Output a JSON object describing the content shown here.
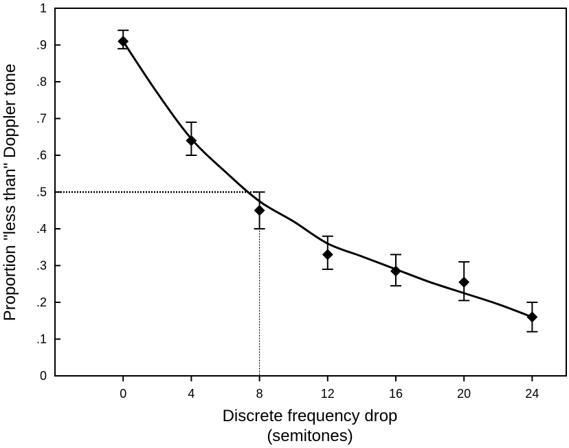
{
  "chart_data": {
    "type": "scatter",
    "title": "",
    "xlabel_line1": "Discrete frequency drop",
    "xlabel_line2": "(semitones)",
    "ylabel": "Proportion \"less than\" Doppler tone",
    "xlim": [
      -4,
      26
    ],
    "ylim": [
      0,
      1
    ],
    "x_ticks": [
      {
        "value": 0,
        "label": "0"
      },
      {
        "value": 4,
        "label": "4"
      },
      {
        "value": 8,
        "label": "8"
      },
      {
        "value": 12,
        "label": "12"
      },
      {
        "value": 16,
        "label": "16"
      },
      {
        "value": 20,
        "label": "20"
      },
      {
        "value": 24,
        "label": "24"
      }
    ],
    "y_ticks": [
      {
        "value": 0,
        "label": "0"
      },
      {
        "value": 0.1,
        "label": ".1"
      },
      {
        "value": 0.2,
        "label": ".2"
      },
      {
        "value": 0.3,
        "label": ".3"
      },
      {
        "value": 0.4,
        "label": ".4"
      },
      {
        "value": 0.5,
        "label": ".5"
      },
      {
        "value": 0.6,
        "label": ".6"
      },
      {
        "value": 0.7,
        "label": ".7"
      },
      {
        "value": 0.8,
        "label": ".8"
      },
      {
        "value": 0.9,
        "label": ".9"
      },
      {
        "value": 1,
        "label": "1"
      }
    ],
    "points": [
      {
        "x": 0,
        "y": 0.91,
        "err_low": 0.89,
        "err_high": 0.94
      },
      {
        "x": 4,
        "y": 0.64,
        "err_low": 0.6,
        "err_high": 0.69
      },
      {
        "x": 8,
        "y": 0.45,
        "err_low": 0.4,
        "err_high": 0.5
      },
      {
        "x": 12,
        "y": 0.33,
        "err_low": 0.29,
        "err_high": 0.38
      },
      {
        "x": 16,
        "y": 0.285,
        "err_low": 0.245,
        "err_high": 0.33
      },
      {
        "x": 20,
        "y": 0.255,
        "err_low": 0.205,
        "err_high": 0.31
      },
      {
        "x": 24,
        "y": 0.16,
        "err_low": 0.12,
        "err_high": 0.2
      }
    ],
    "fit_curve": [
      {
        "x": 0,
        "y": 0.91
      },
      {
        "x": 2,
        "y": 0.77
      },
      {
        "x": 4,
        "y": 0.645
      },
      {
        "x": 6,
        "y": 0.555
      },
      {
        "x": 8,
        "y": 0.475
      },
      {
        "x": 10,
        "y": 0.42
      },
      {
        "x": 12,
        "y": 0.36
      },
      {
        "x": 14,
        "y": 0.325
      },
      {
        "x": 16,
        "y": 0.29
      },
      {
        "x": 18,
        "y": 0.255
      },
      {
        "x": 20,
        "y": 0.225
      },
      {
        "x": 22,
        "y": 0.195
      },
      {
        "x": 24,
        "y": 0.16
      }
    ],
    "threshold_y": 0.5,
    "threshold_x": 8
  }
}
